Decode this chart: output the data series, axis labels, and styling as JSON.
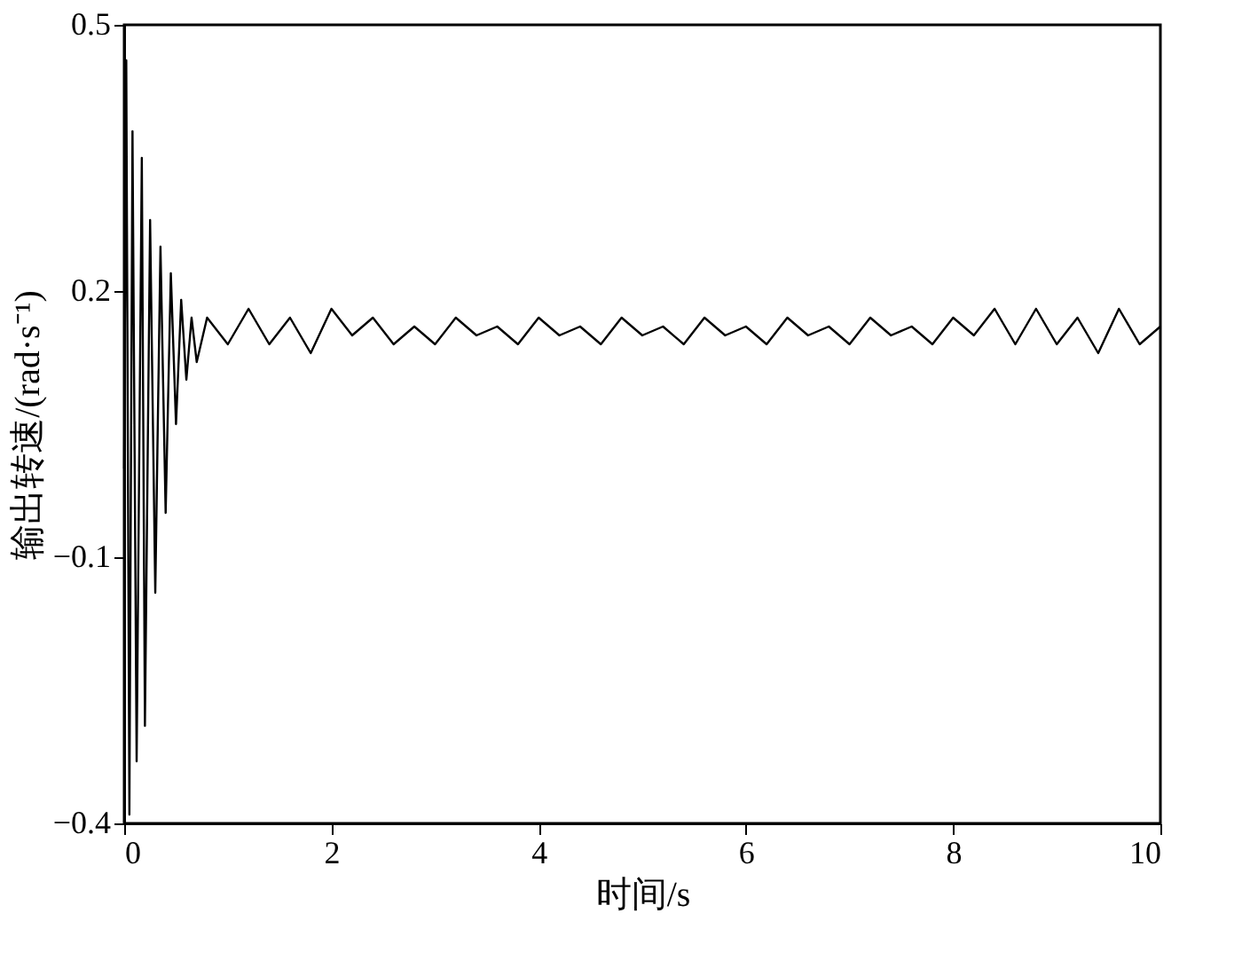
{
  "chart_data": {
    "type": "line",
    "xlabel": "时间/s",
    "ylabel": "输出转速/(rad·s⁻¹)",
    "xlim": [
      0,
      10
    ],
    "xticks": [
      0,
      2,
      4,
      6,
      8,
      10
    ],
    "ylim": [
      -0.4,
      0.5
    ],
    "yticks": [
      -0.4,
      -0.1,
      0.2,
      0.5
    ],
    "grid": false,
    "marker": "none",
    "line_style": "solid",
    "series": [
      {
        "color": "#000000",
        "x": [
          0,
          0.02,
          0.05,
          0.08,
          0.12,
          0.17,
          0.2,
          0.25,
          0.3,
          0.35,
          0.4,
          0.45,
          0.5,
          0.55,
          0.6,
          0.65,
          0.7,
          0.8,
          1.0,
          1.2,
          1.4,
          1.6,
          1.8,
          2.0,
          2.2,
          2.4,
          2.6,
          2.8,
          3.0,
          3.2,
          3.4,
          3.6,
          3.8,
          4.0,
          4.2,
          4.4,
          4.6,
          4.8,
          5.0,
          5.2,
          5.4,
          5.6,
          5.8,
          6.0,
          6.2,
          6.4,
          6.6,
          6.8,
          7.0,
          7.2,
          7.4,
          7.6,
          7.8,
          8.0,
          8.2,
          8.4,
          8.6,
          8.8,
          9.0,
          9.2,
          9.4,
          9.6,
          9.8,
          10.0
        ],
        "values": [
          0.0,
          0.46,
          -0.39,
          0.38,
          -0.33,
          0.35,
          -0.29,
          0.28,
          -0.14,
          0.25,
          -0.05,
          0.22,
          0.05,
          0.19,
          0.1,
          0.17,
          0.12,
          0.17,
          0.14,
          0.18,
          0.14,
          0.17,
          0.13,
          0.18,
          0.15,
          0.17,
          0.14,
          0.16,
          0.14,
          0.17,
          0.15,
          0.16,
          0.14,
          0.17,
          0.15,
          0.16,
          0.14,
          0.17,
          0.15,
          0.16,
          0.14,
          0.17,
          0.15,
          0.16,
          0.14,
          0.17,
          0.15,
          0.16,
          0.14,
          0.17,
          0.15,
          0.16,
          0.14,
          0.17,
          0.15,
          0.18,
          0.14,
          0.18,
          0.14,
          0.17,
          0.13,
          0.18,
          0.14,
          0.16
        ]
      }
    ]
  }
}
